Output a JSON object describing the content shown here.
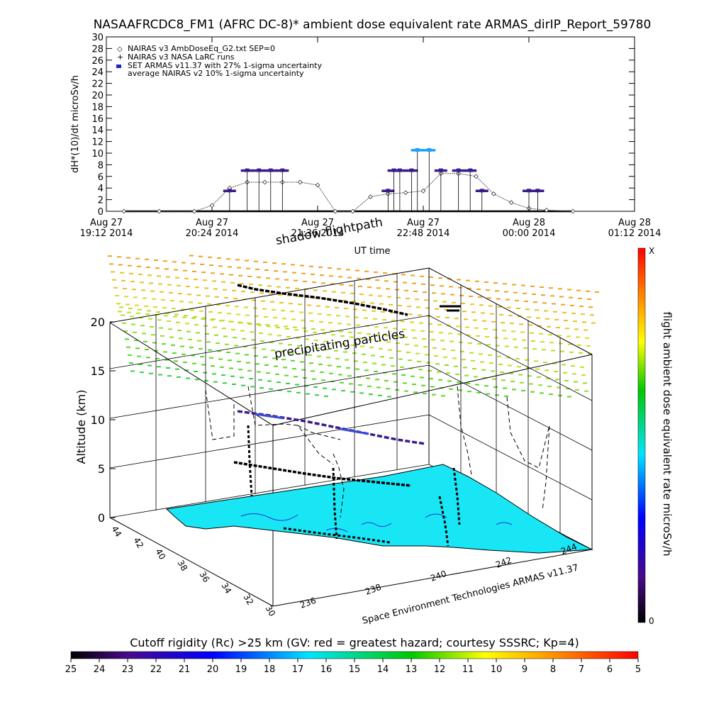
{
  "title": "NASAAFRCDC8_FM1 (AFRC DC-8)* ambient dose equivalent rate ARMAS_dirIP_Report_59780",
  "top_chart": {
    "ylabel": "dH*(10)/dt microSv/h",
    "xlabel": "UT time",
    "legend": [
      "NAIRAS v3 AmbDoseEq_G2.txt SEP=0",
      "NAIRAS v3 NASA LaRC runs",
      "SET ARMAS v11.37 with 27% 1-sigma uncertainty",
      "average NAIRAS v2 10% 1-sigma uncertainty"
    ],
    "x_ticks": [
      {
        "l1": "Aug 27",
        "l2": "19:12 2014"
      },
      {
        "l1": "Aug 27",
        "l2": "20:24 2014"
      },
      {
        "l1": "Aug 27",
        "l2": "21:36 2014"
      },
      {
        "l1": "Aug 27",
        "l2": "22:48 2014"
      },
      {
        "l1": "Aug 28",
        "l2": "00:00 2014"
      },
      {
        "l1": "Aug 28",
        "l2": "01:12 2014"
      }
    ],
    "y_ticks": [
      "0",
      "2",
      "4",
      "6",
      "8",
      "10",
      "12",
      "14",
      "16",
      "18",
      "20",
      "22",
      "24",
      "26",
      "28",
      "30"
    ]
  },
  "chart_data": [
    {
      "type": "line",
      "title": "NASAAFRCDC8_FM1 (AFRC DC-8)* ambient dose equivalent rate ARMAS_dirIP_Report_59780",
      "xlabel": "UT time",
      "ylabel": "dH*(10)/dt microSv/h",
      "ylim": [
        0,
        30
      ],
      "xlim": [
        "2014-08-27 19:12",
        "2014-08-28 01:12"
      ],
      "legend_placement": "top-left",
      "series": [
        {
          "name": "NAIRAS v3 AmbDoseEq_G2.txt SEP=0",
          "x": [
            "19:24",
            "19:48",
            "20:12",
            "20:24",
            "20:36",
            "20:48",
            "21:00",
            "21:12",
            "21:24",
            "21:36",
            "21:48",
            "22:00",
            "22:12",
            "22:24",
            "22:36",
            "22:48",
            "23:00",
            "23:12",
            "23:24",
            "23:36",
            "23:48",
            "00:00",
            "00:12",
            "00:30"
          ],
          "y": [
            0,
            0,
            0,
            1,
            4,
            5,
            5,
            5,
            5,
            4.5,
            0,
            0,
            2.5,
            3,
            3.2,
            3.5,
            6.5,
            6.5,
            6,
            3,
            1.5,
            0.5,
            0.2,
            0
          ]
        },
        {
          "name": "SET ARMAS v11.37 with 27% 1-sigma uncertainty",
          "x": [
            "20:36",
            "20:48",
            "20:56",
            "21:04",
            "21:12",
            "22:24",
            "22:28",
            "22:32",
            "22:40",
            "22:44",
            "22:52",
            "23:00",
            "23:12",
            "23:20",
            "23:28",
            "00:00",
            "00:06"
          ],
          "y": [
            3.5,
            7,
            7,
            7,
            7,
            3.5,
            7,
            7,
            7,
            10.5,
            10.5,
            7,
            7,
            7,
            3.5,
            3.5,
            3.5
          ]
        }
      ]
    },
    {
      "type": "scatter",
      "title": "",
      "zlabel": "Altitude (km)",
      "z_ticks": [
        "0",
        "5",
        "10",
        "15",
        "20"
      ],
      "lat_ticks": [
        "44",
        "42",
        "40",
        "38",
        "36",
        "34",
        "32",
        "30"
      ],
      "lon_ticks": [
        "236",
        "238",
        "240",
        "242",
        "244"
      ],
      "annotations": [
        "shadow flightpath",
        "precipitating particles"
      ],
      "colorbar": {
        "label": "flight ambient dose equivalent rate microSv/h",
        "min_label": "0",
        "max_label": "X"
      }
    }
  ],
  "annotations": {
    "shadow": "shadow flightpath",
    "precip": "precipitating particles"
  },
  "credit": "Space Environment Technologies ARMAS v11.37",
  "three_d": {
    "zlabel": "Altitude (km)",
    "z_ticks": [
      "0",
      "5",
      "10",
      "15",
      "20"
    ],
    "lat_ticks": [
      "44",
      "42",
      "40",
      "38",
      "36",
      "34",
      "32",
      "30"
    ],
    "lon_ticks": [
      "236",
      "238",
      "240",
      "242",
      "244"
    ]
  },
  "colorbar_right": {
    "label": "flight ambient dose equivalent rate microSv/h",
    "top": "X",
    "bottom": "0"
  },
  "colorbar_bottom": {
    "title": "Cutoff rigidity (Rc) >25 km (GV: red = greatest hazard; courtesy SSSRC; Kp=4)",
    "ticks": [
      "25",
      "24",
      "23",
      "22",
      "21",
      "20",
      "19",
      "18",
      "17",
      "16",
      "15",
      "14",
      "13",
      "12",
      "11",
      "10",
      "9",
      "8",
      "7",
      "6",
      "5"
    ]
  },
  "colors": {
    "land": "#19e6f5",
    "armas": "#3a1b8a",
    "armas_peak": "#1aa0ff",
    "line": "#000000"
  }
}
